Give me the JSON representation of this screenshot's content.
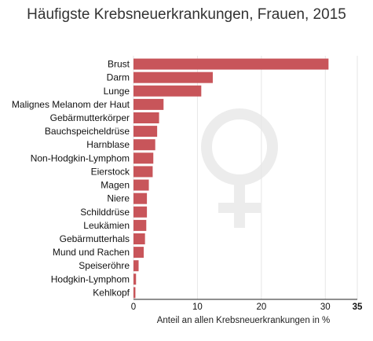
{
  "chart_data": {
    "type": "bar",
    "orientation": "horizontal",
    "title": "Häufigste Krebsneuerkrankungen, Frauen, 2015",
    "xlabel": "Anteil an allen Krebsneuerkrankungen in %",
    "ylabel": "",
    "xlim": [
      0,
      35
    ],
    "xticks": [
      "0",
      "10",
      "20",
      "30",
      "35"
    ],
    "grid": true,
    "bar_color": "#c8555a",
    "categories": [
      "Brust",
      "Darm",
      "Lunge",
      "Malignes Melanom der Haut",
      "Gebärmutterkörper",
      "Bauchspeicheldrüse",
      "Harnblase",
      "Non-Hodgkin-Lymphom",
      "Eierstock",
      "Magen",
      "Niere",
      "Schilddrüse",
      "Leukämien",
      "Gebärmutterhals",
      "Mund und Rachen",
      "Speiseröhre",
      "Hodgkin-Lymphom",
      "Kehlkopf"
    ],
    "values": [
      30.5,
      12.4,
      10.6,
      4.7,
      4.0,
      3.7,
      3.4,
      3.1,
      3.0,
      2.4,
      2.1,
      2.1,
      2.0,
      1.8,
      1.6,
      0.8,
      0.4,
      0.3
    ]
  },
  "background_icon": "venus-symbol-icon"
}
